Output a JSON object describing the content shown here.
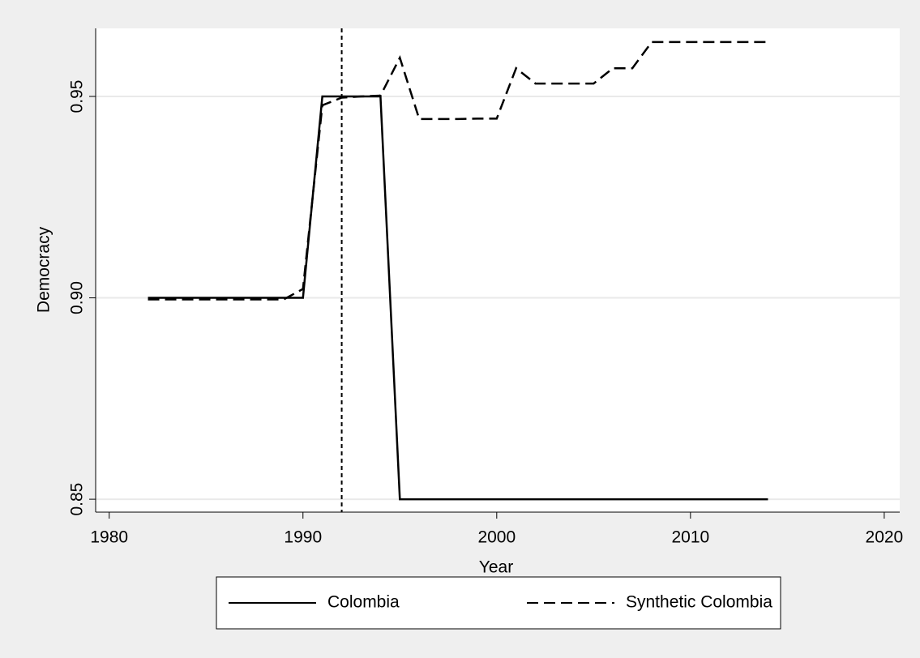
{
  "chart_data": {
    "type": "line",
    "x": [
      1982,
      1983,
      1984,
      1985,
      1986,
      1987,
      1988,
      1989,
      1990,
      1991,
      1992,
      1993,
      1994,
      1995,
      1996,
      1997,
      1998,
      1999,
      2000,
      2001,
      2002,
      2003,
      2004,
      2005,
      2006,
      2007,
      2008,
      2009,
      2010,
      2011,
      2012,
      2013,
      2014
    ],
    "series": [
      {
        "name": "Colombia",
        "color": "#000000",
        "dash": "solid",
        "values": [
          0.9,
          0.9,
          0.9,
          0.9,
          0.9,
          0.9,
          0.9,
          0.9,
          0.9,
          0.95,
          0.95,
          0.95,
          0.95,
          0.85,
          0.85,
          0.85,
          0.85,
          0.85,
          0.85,
          0.85,
          0.85,
          0.85,
          0.85,
          0.85,
          0.85,
          0.85,
          0.85,
          0.85,
          0.85,
          0.85,
          0.85,
          0.85,
          0.85
        ]
      },
      {
        "name": "Synthetic Colombia",
        "color": "#000000",
        "dash": "dashed",
        "values": [
          0.8996,
          0.8996,
          0.8996,
          0.8996,
          0.8996,
          0.8996,
          0.8996,
          0.8996,
          0.9022,
          0.9478,
          0.9497,
          0.95,
          0.9502,
          0.9596,
          0.9444,
          0.9444,
          0.9444,
          0.9445,
          0.9445,
          0.957,
          0.9532,
          0.9532,
          0.9532,
          0.9532,
          0.957,
          0.957,
          0.9635,
          0.9635,
          0.9635,
          0.9635,
          0.9635,
          0.9635,
          0.9635
        ]
      }
    ],
    "xlabel": "Year",
    "ylabel": "Democracy",
    "xlim": [
      1979.3,
      2020.8
    ],
    "xticks": [
      1980,
      1990,
      2000,
      2010,
      2020
    ],
    "ylim": [
      0.8468,
      0.9669
    ],
    "yticks": [
      {
        "value": 0.85,
        "label": "0.85"
      },
      {
        "value": 0.9,
        "label": "0.90"
      },
      0.95
    ],
    "xline": 1992,
    "grid": true,
    "legend": "bottom"
  }
}
